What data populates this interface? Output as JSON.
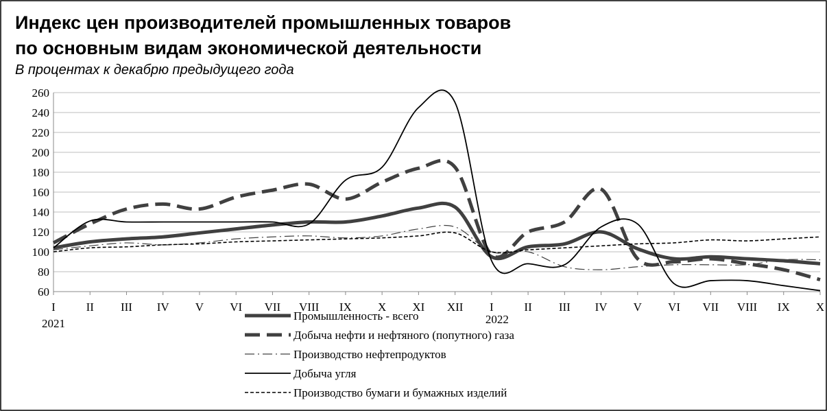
{
  "chart_data": {
    "type": "line",
    "title": [
      "Индекс цен производителей промышленных товаров",
      "по основным видам экономической деятельности"
    ],
    "subtitle": "В процентах к декабрю предыдущего года",
    "categories": [
      "I",
      "II",
      "III",
      "IV",
      "V",
      "VI",
      "VII",
      "VIII",
      "IX",
      "X",
      "XI",
      "XII",
      "I",
      "II",
      "III",
      "IV",
      "V",
      "VI",
      "VII",
      "VIII",
      "IX",
      "X"
    ],
    "years": [
      "2021",
      "2022"
    ],
    "ylim": [
      60,
      260
    ],
    "yticks": [
      60,
      80,
      100,
      120,
      140,
      160,
      180,
      200,
      220,
      240,
      260
    ],
    "grid": true,
    "legend": "bottom",
    "series": [
      {
        "name": "Промышленность - всего",
        "color": "#404040",
        "values": [
          104,
          110,
          113,
          115,
          119,
          123,
          127,
          130,
          130,
          136,
          144,
          145,
          95,
          105,
          108,
          120,
          103,
          93,
          95,
          93,
          91,
          88
        ]
      },
      {
        "name": "Добыча нефти и нефтяного (попутного) газа",
        "color": "#404040",
        "values": [
          109,
          128,
          143,
          148,
          143,
          155,
          162,
          168,
          153,
          170,
          184,
          185,
          97,
          120,
          130,
          163,
          93,
          90,
          93,
          88,
          82,
          72
        ]
      },
      {
        "name": "Производство нефтепродуктов",
        "color": "#404040",
        "values": [
          102,
          106,
          109,
          107,
          109,
          113,
          115,
          116,
          114,
          116,
          123,
          125,
          100,
          100,
          85,
          82,
          85,
          87,
          87,
          87,
          92,
          92
        ]
      },
      {
        "name": "Добыча угля",
        "color": "#000000",
        "values": [
          104,
          131,
          130,
          130,
          130,
          130,
          130,
          128,
          172,
          185,
          245,
          250,
          91,
          88,
          87,
          125,
          128,
          68,
          71,
          71,
          66,
          61
        ]
      },
      {
        "name": "Производство бумаги и бумажных изделий",
        "color": "#000000",
        "values": [
          100,
          104,
          105,
          107,
          108,
          110,
          111,
          112,
          113,
          114,
          116,
          119,
          100,
          102,
          104,
          106,
          108,
          109,
          112,
          111,
          113,
          115
        ]
      }
    ]
  }
}
